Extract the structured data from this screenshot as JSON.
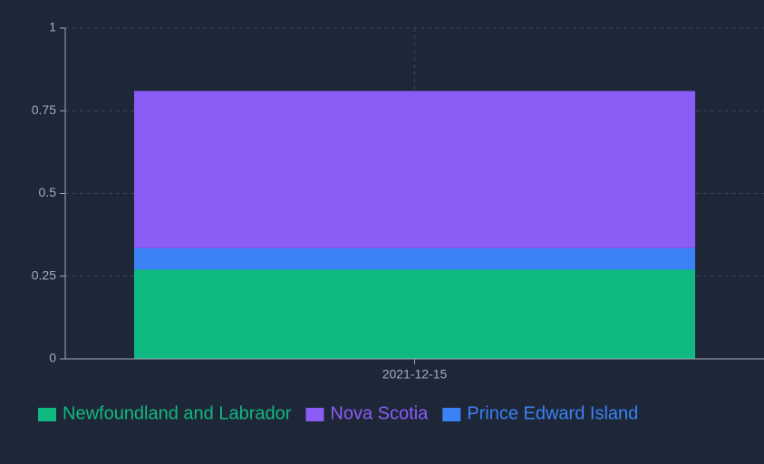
{
  "chart_data": {
    "type": "stacked-bar",
    "categories": [
      "2021-12-15"
    ],
    "series": [
      {
        "name": "Newfoundland and Labrador",
        "color": "#10b981",
        "values": [
          0.27
        ]
      },
      {
        "name": "Prince Edward Island",
        "color": "#3b82f6",
        "values": [
          0.065
        ]
      },
      {
        "name": "Nova Scotia",
        "color": "#8b5cf6",
        "values": [
          0.475
        ]
      }
    ],
    "legend_order": [
      0,
      2,
      1
    ],
    "ylim": [
      0,
      1
    ],
    "yticks": [
      0,
      0.25,
      0.5,
      0.75,
      1
    ],
    "grid": true
  }
}
